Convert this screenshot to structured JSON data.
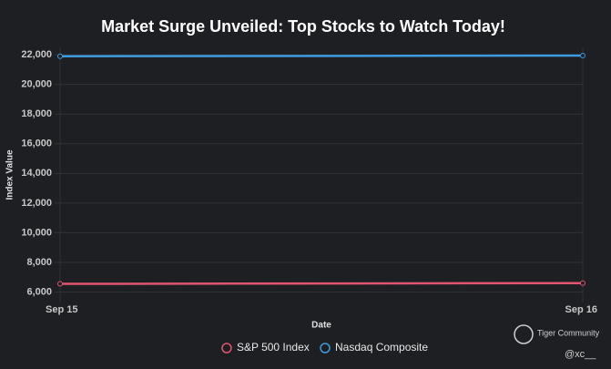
{
  "chart_data": {
    "type": "line",
    "title": "Market Surge Unveiled: Top Stocks to Watch Today!",
    "x_label": "Date",
    "y_label": "Index Value",
    "categories": [
      "Sep 15",
      "Sep 16"
    ],
    "series": [
      {
        "name": "S&P 500 Index",
        "color": "#e0556f",
        "values": [
          6550,
          6600
        ]
      },
      {
        "name": "Nasdaq Composite",
        "color": "#3d9be0",
        "values": [
          21900,
          21950
        ]
      }
    ],
    "ylim": [
      5600,
      22500
    ],
    "yticks": [
      {
        "value": 6000,
        "label": "6,000"
      },
      {
        "value": 8000,
        "label": "8,000"
      },
      {
        "value": 10000,
        "label": "10,000"
      },
      {
        "value": 12000,
        "label": "12,000"
      },
      {
        "value": 14000,
        "label": "14,000"
      },
      {
        "value": 16000,
        "label": "16,000"
      },
      {
        "value": 18000,
        "label": "18,000"
      },
      {
        "value": 20000,
        "label": "20,000"
      },
      {
        "value": 22000,
        "label": "22,000"
      }
    ],
    "grid": true,
    "legend": "bottom"
  },
  "watermark": {
    "brand": "Tiger Community",
    "handle": "@xc__"
  }
}
